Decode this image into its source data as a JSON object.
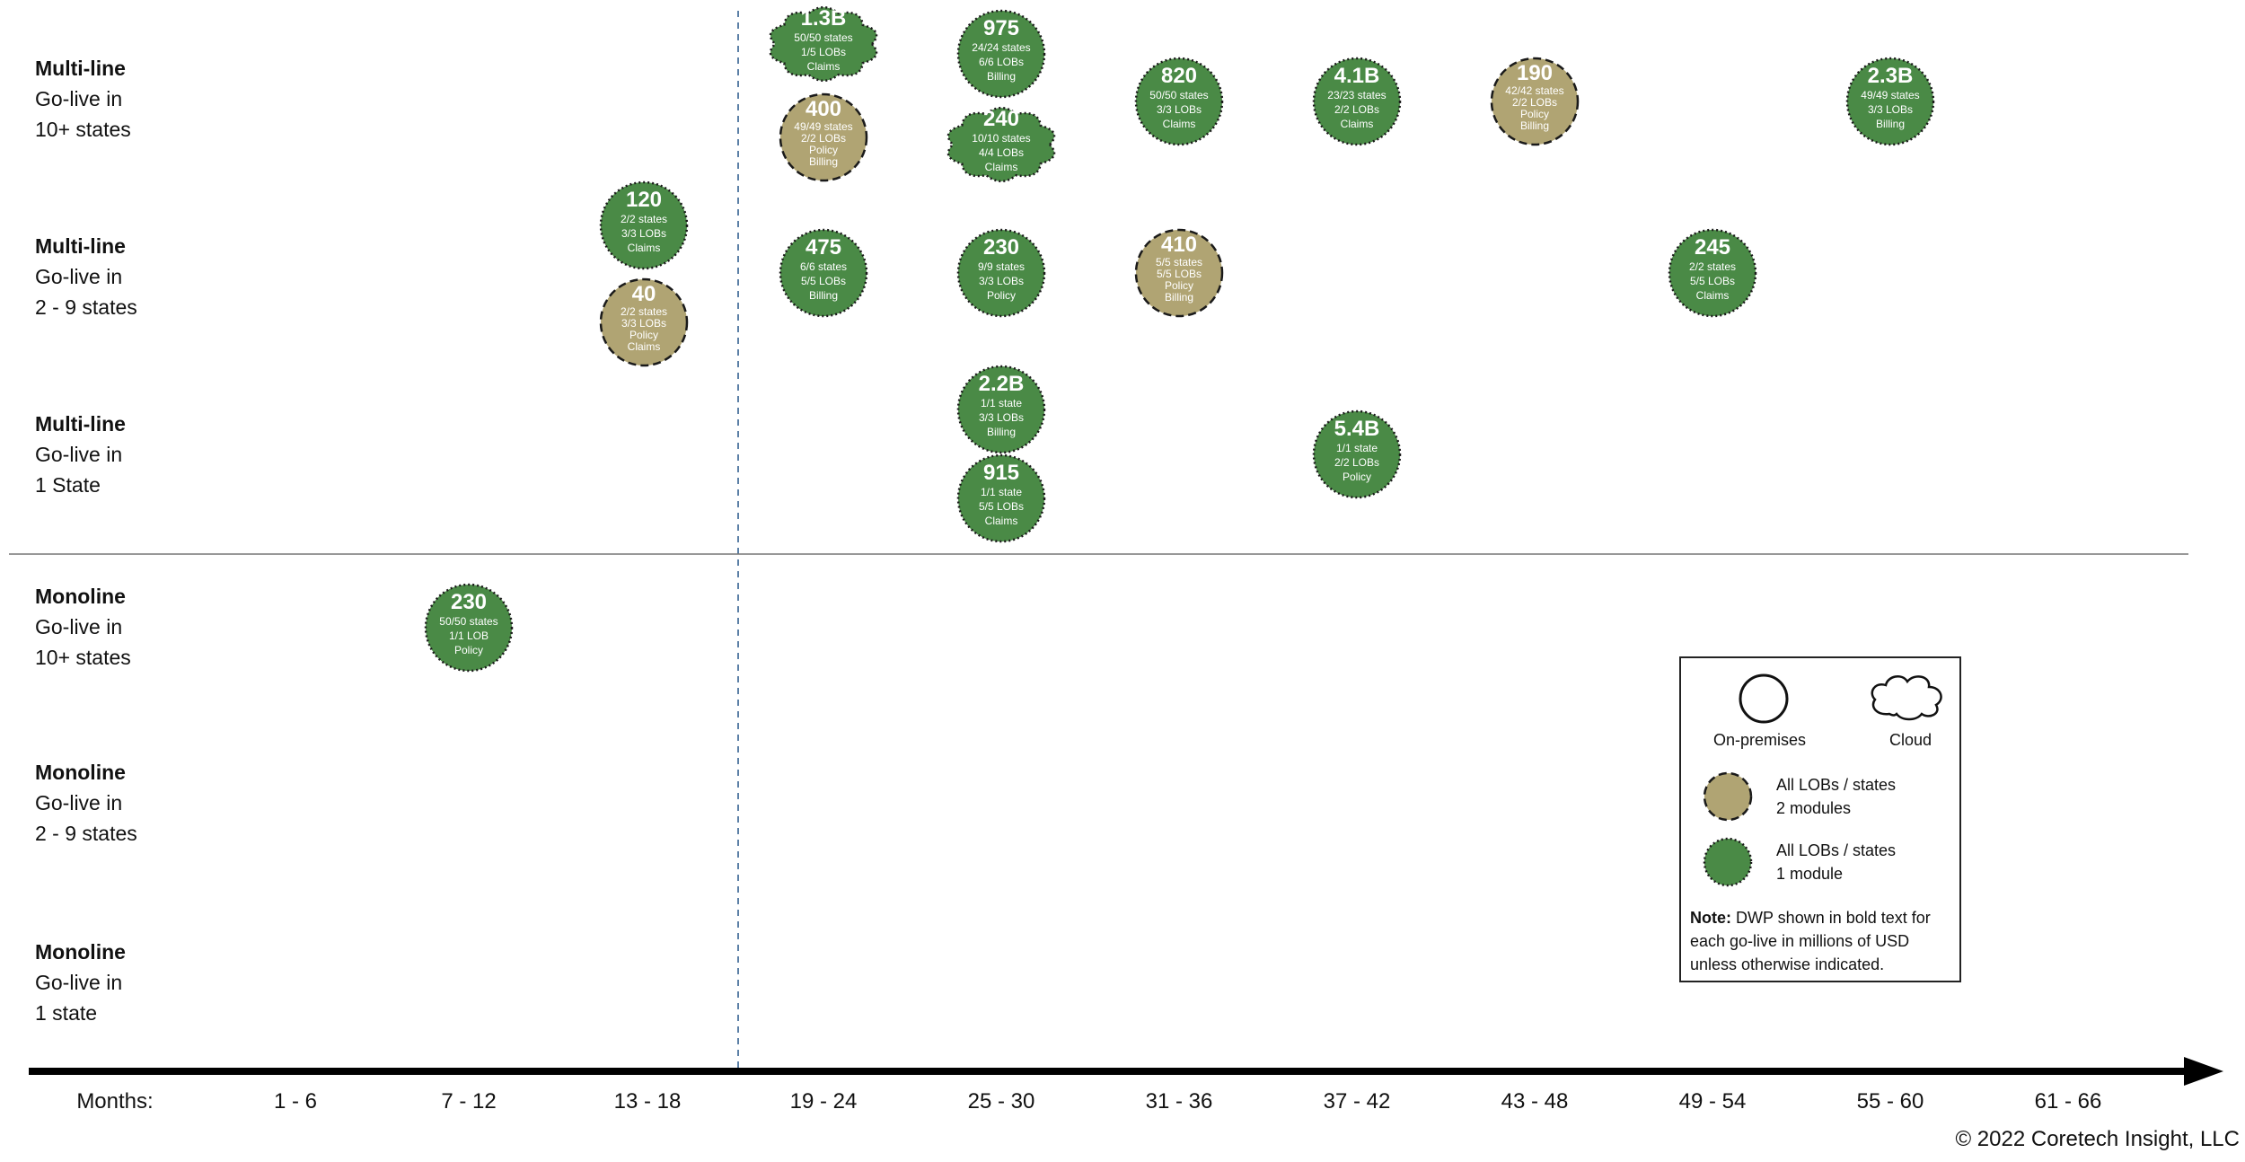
{
  "rows": [
    {
      "kind": "Multi-line",
      "line1": "Go-live in",
      "line2": "10+ states"
    },
    {
      "kind": "Multi-line",
      "line1": "Go-live in",
      "line2": "2 - 9 states"
    },
    {
      "kind": "Multi-line",
      "line1": "Go-live in",
      "line2": "1 State"
    },
    {
      "kind": "Monoline",
      "line1": "Go-live in",
      "line2": "10+ states"
    },
    {
      "kind": "Monoline",
      "line1": "Go-live in",
      "line2": "2 - 9 states"
    },
    {
      "kind": "Monoline",
      "line1": "Go-live in",
      "line2": "1 state"
    }
  ],
  "axis": {
    "months_label": "Months:",
    "periods": [
      "1 - 6",
      "7 - 12",
      "13 - 18",
      "19 - 24",
      "25 - 30",
      "31 - 36",
      "37 - 42",
      "43 - 48",
      "49 - 54",
      "55 - 60",
      "61 - 66"
    ]
  },
  "colors": {
    "one_module": "#4a8a46",
    "two_modules": "#b0a473",
    "border": "#1a1a1a",
    "axis": "#000000",
    "divider": "#777777",
    "dashed_line": "#5b7fa6"
  },
  "bubbles": [
    {
      "dwp": "1.3B",
      "lines": [
        "50/50 states",
        "1/5 LOBs",
        "Claims"
      ],
      "modules": 1,
      "deployment": "cloud",
      "row": 0,
      "period": 3
    },
    {
      "dwp": "400",
      "lines": [
        "49/49 states",
        "2/2 LOBs",
        "Policy",
        "Billing"
      ],
      "modules": 2,
      "deployment": "on-premises",
      "row": 0,
      "period": 3
    },
    {
      "dwp": "975",
      "lines": [
        "24/24 states",
        "6/6 LOBs",
        "Billing"
      ],
      "modules": 1,
      "deployment": "on-premises",
      "row": 0,
      "period": 4
    },
    {
      "dwp": "240",
      "lines": [
        "10/10 states",
        "4/4 LOBs",
        "Claims"
      ],
      "modules": 1,
      "deployment": "cloud",
      "row": 0,
      "period": 4
    },
    {
      "dwp": "820",
      "lines": [
        "50/50 states",
        "3/3 LOBs",
        "Claims"
      ],
      "modules": 1,
      "deployment": "on-premises",
      "row": 0,
      "period": 5
    },
    {
      "dwp": "4.1B",
      "lines": [
        "23/23 states",
        "2/2 LOBs",
        "Claims"
      ],
      "modules": 1,
      "deployment": "on-premises",
      "row": 0,
      "period": 6
    },
    {
      "dwp": "190",
      "lines": [
        "42/42 states",
        "2/2 LOBs",
        "Policy",
        "Billing"
      ],
      "modules": 2,
      "deployment": "on-premises",
      "row": 0,
      "period": 7
    },
    {
      "dwp": "2.3B",
      "lines": [
        "49/49 states",
        "3/3 LOBs",
        "Billing"
      ],
      "modules": 1,
      "deployment": "on-premises",
      "row": 0,
      "period": 9
    },
    {
      "dwp": "120",
      "lines": [
        "2/2 states",
        "3/3 LOBs",
        "Claims"
      ],
      "modules": 1,
      "deployment": "on-premises",
      "row": 1,
      "period": 2
    },
    {
      "dwp": "40",
      "lines": [
        "2/2 states",
        "3/3 LOBs",
        "Policy",
        "Claims"
      ],
      "modules": 2,
      "deployment": "on-premises",
      "row": 1,
      "period": 2
    },
    {
      "dwp": "475",
      "lines": [
        "6/6 states",
        "5/5 LOBs",
        "Billing"
      ],
      "modules": 1,
      "deployment": "on-premises",
      "row": 1,
      "period": 3
    },
    {
      "dwp": "230",
      "lines": [
        "9/9 states",
        "3/3 LOBs",
        "Policy"
      ],
      "modules": 1,
      "deployment": "on-premises",
      "row": 1,
      "period": 4
    },
    {
      "dwp": "410",
      "lines": [
        "5/5 states",
        "5/5 LOBs",
        "Policy",
        "Billing"
      ],
      "modules": 2,
      "deployment": "on-premises",
      "row": 1,
      "period": 5
    },
    {
      "dwp": "245",
      "lines": [
        "2/2 states",
        "5/5 LOBs",
        "Claims"
      ],
      "modules": 1,
      "deployment": "on-premises",
      "row": 1,
      "period": 8
    },
    {
      "dwp": "2.2B",
      "lines": [
        "1/1 state",
        "3/3 LOBs",
        "Billing"
      ],
      "modules": 1,
      "deployment": "on-premises",
      "row": 2,
      "period": 4
    },
    {
      "dwp": "915",
      "lines": [
        "1/1 state",
        "5/5 LOBs",
        "Claims"
      ],
      "modules": 1,
      "deployment": "on-premises",
      "row": 2,
      "period": 4
    },
    {
      "dwp": "5.4B",
      "lines": [
        "1/1 state",
        "2/2 LOBs",
        "Policy"
      ],
      "modules": 1,
      "deployment": "on-premises",
      "row": 2,
      "period": 6
    },
    {
      "dwp": "230",
      "lines": [
        "50/50 states",
        "1/1 LOB",
        "Policy"
      ],
      "modules": 1,
      "deployment": "on-premises",
      "row": 3,
      "period": 1
    }
  ],
  "legend": {
    "on_premises": "On-premises",
    "cloud": "Cloud",
    "two_modules_line1": "All LOBs / states",
    "two_modules_line2": "2 modules",
    "one_module_line1": "All LOBs / states",
    "one_module_line2": "1 module",
    "note_label": "Note:",
    "note_text": "DWP shown in bold text for each go-live in millions of USD unless otherwise indicated."
  },
  "copyright": "© 2022 Coretech Insight, LLC"
}
